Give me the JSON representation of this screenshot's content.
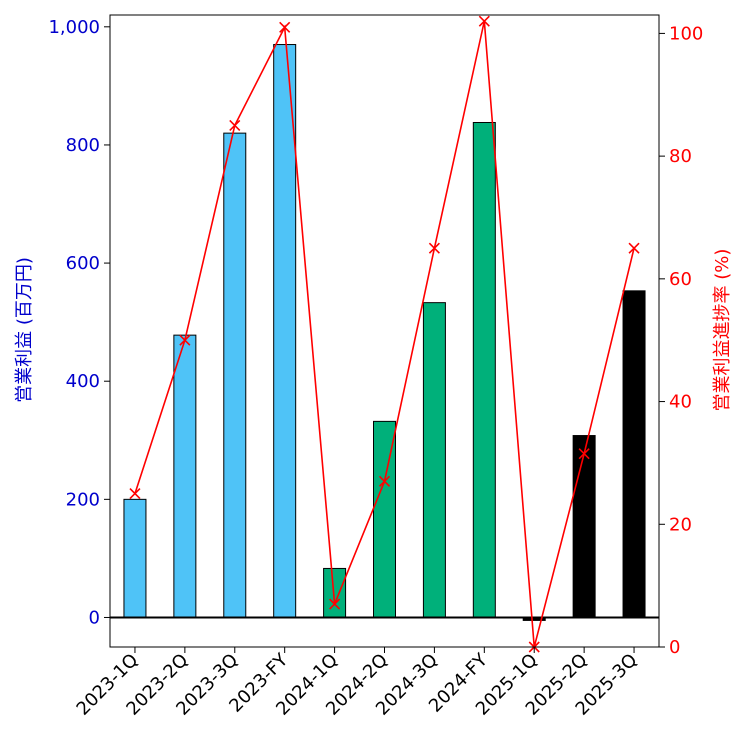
{
  "chart_data": {
    "type": "bar",
    "categories": [
      "2023-1Q",
      "2023-2Q",
      "2023-3Q",
      "2023-FY",
      "2024-1Q",
      "2024-2Q",
      "2024-3Q",
      "2024-FY",
      "2025-1Q",
      "2025-2Q",
      "2025-3Q"
    ],
    "series": [
      {
        "type": "bar",
        "axis": "left",
        "values": [
          200,
          478,
          820,
          970,
          83,
          332,
          533,
          838,
          -5,
          308,
          553
        ],
        "colors": [
          "#4fc3f7",
          "#4fc3f7",
          "#4fc3f7",
          "#4fc3f7",
          "#00b07a",
          "#00b07a",
          "#00b07a",
          "#00b07a",
          "#000000",
          "#000000",
          "#000000"
        ]
      },
      {
        "type": "line",
        "axis": "right",
        "marker": "x",
        "color": "#ff0000",
        "values": [
          25,
          50,
          85,
          101,
          7,
          27,
          65,
          102,
          0,
          31.5,
          65
        ]
      }
    ],
    "ylabel_left": "営業利益 (百万円)",
    "ylabel_right": "営業利益進捗率 (%)",
    "ylim_left": [
      -50,
      1020
    ],
    "ylim_right": [
      0,
      103
    ],
    "yticks_left": [
      "0",
      "200",
      "400",
      "600",
      "800",
      "1,000"
    ],
    "ytick_values_left": [
      0,
      200,
      400,
      600,
      800,
      1000
    ],
    "yticks_right": [
      "0",
      "20",
      "40",
      "60",
      "80",
      "100"
    ],
    "ytick_values_right": [
      0,
      20,
      40,
      60,
      80,
      100
    ],
    "grid": false,
    "colors": {
      "left_axis": "#0000cc",
      "right_axis": "#ff0000",
      "line": "#ff0000"
    }
  }
}
